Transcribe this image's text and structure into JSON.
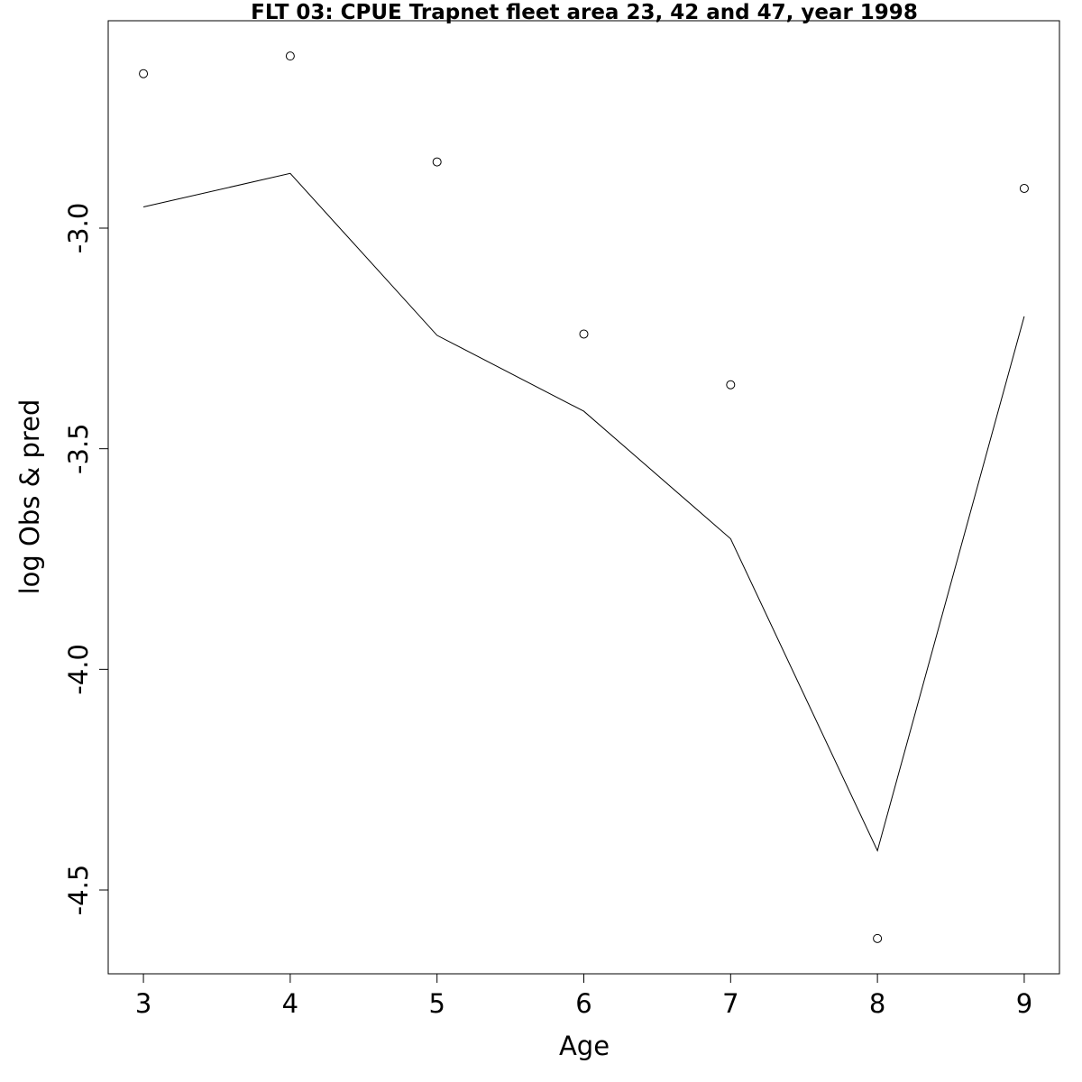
{
  "chart_data": {
    "type": "line",
    "title": "FLT 03: CPUE Trapnet fleet area 23, 42 and 47, year 1998",
    "xlabel": "Age",
    "ylabel": "log Obs & pred",
    "x": [
      3,
      4,
      5,
      6,
      7,
      8,
      9
    ],
    "xlim": [
      2.76,
      9.24
    ],
    "ylim": [
      -4.69,
      -2.53
    ],
    "x_ticks": [
      "3",
      "4",
      "5",
      "6",
      "7",
      "8",
      "9"
    ],
    "y_ticks": [
      "-3.0",
      "-3.5",
      "-4.0",
      "-4.5"
    ],
    "x_tick_values": [
      3,
      4,
      5,
      6,
      7,
      8,
      9
    ],
    "y_tick_values": [
      -3.0,
      -3.5,
      -4.0,
      -4.5
    ],
    "grid": false,
    "legend": "none",
    "series": [
      {
        "style": "points",
        "marker": "open-circle",
        "color": "#000000",
        "values": [
          -2.65,
          -2.61,
          -2.85,
          -3.24,
          -3.355,
          -4.61,
          -2.91
        ]
      },
      {
        "style": "line",
        "color": "#000000",
        "values": [
          -2.952,
          -2.876,
          -3.243,
          -3.415,
          -3.704,
          -4.411,
          -3.2
        ]
      }
    ]
  }
}
